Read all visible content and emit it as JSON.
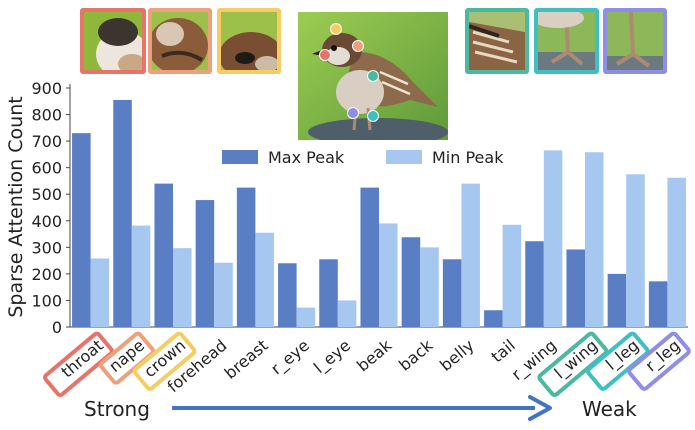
{
  "chart_data": {
    "type": "bar",
    "ylabel": "Sparse Attention Count",
    "ylim": [
      0,
      900
    ],
    "yticks": [
      0,
      100,
      200,
      300,
      400,
      500,
      600,
      700,
      800,
      900
    ],
    "categories": [
      "throat",
      "nape",
      "crown",
      "forehead",
      "breast",
      "r_eye",
      "l_eye",
      "beak",
      "back",
      "belly",
      "tail",
      "r_wing",
      "l_wing",
      "l_leg",
      "r_leg"
    ],
    "series": [
      {
        "name": "Max Peak",
        "color": "#5a7ec4",
        "values": [
          730,
          855,
          540,
          478,
          525,
          240,
          255,
          525,
          338,
          255,
          63,
          323,
          292,
          200,
          172
        ]
      },
      {
        "name": "Min Peak",
        "color": "#a6c7f0",
        "values": [
          258,
          382,
          297,
          242,
          355,
          73,
          100,
          390,
          300,
          540,
          385,
          665,
          658,
          575,
          562
        ]
      }
    ],
    "legend_position": "top-center",
    "highlighted_labels": [
      {
        "category": "throat",
        "color": "#e8736a"
      },
      {
        "category": "nape",
        "color": "#eca07c"
      },
      {
        "category": "crown",
        "color": "#f5cd62"
      },
      {
        "category": "l_wing",
        "color": "#4bb8a0"
      },
      {
        "category": "l_leg",
        "color": "#3fbfbf"
      },
      {
        "category": "r_leg",
        "color": "#8e8ee6"
      }
    ]
  },
  "arrow": {
    "left_label": "Strong",
    "right_label": "Weak",
    "color": "#4472c4"
  },
  "thumbnails": [
    {
      "icon": "throat-crop-image",
      "color": "#e8736a"
    },
    {
      "icon": "nape-crop-image",
      "color": "#eca07c"
    },
    {
      "icon": "crown-crop-image",
      "color": "#f5cd62"
    },
    {
      "icon": "wing-crop-image",
      "color": "#4bb8a0"
    },
    {
      "icon": "left-leg-crop-image",
      "color": "#3fbfbf"
    },
    {
      "icon": "right-leg-crop-image",
      "color": "#8e8ee6"
    }
  ],
  "bird_photo": {
    "icon": "sparrow-photo",
    "keypoint_colors": [
      "#f5cd62",
      "#e8736a",
      "#eca07c",
      "#4bb8a0",
      "#8e8ee6",
      "#3fbfbf"
    ]
  }
}
